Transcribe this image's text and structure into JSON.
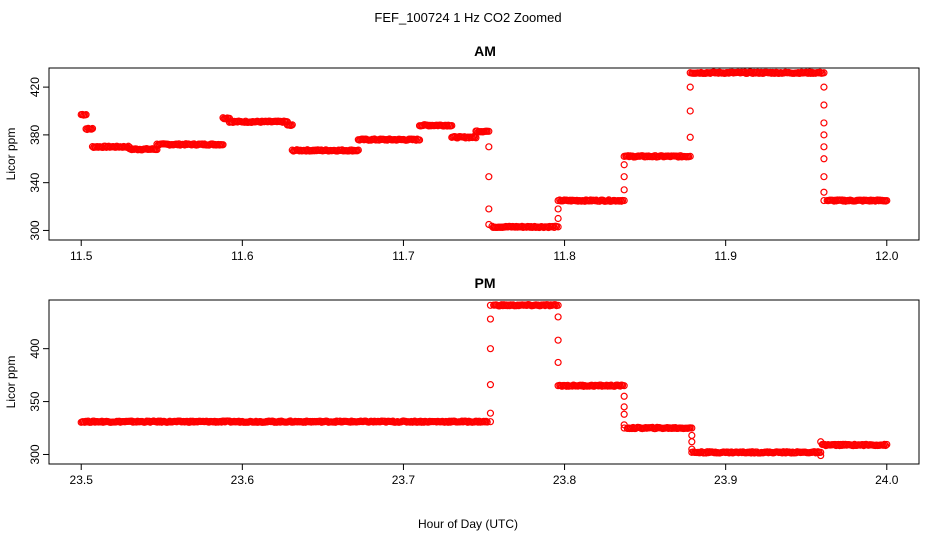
{
  "figure": {
    "title": "FEF_100724  1 Hz CO2 Zoomed",
    "xlabel": "Hour of Day (UTC)"
  },
  "colors": {
    "points": "#ff0000",
    "axes": "#000000",
    "background": "#ffffff"
  },
  "chart_data": [
    {
      "type": "scatter",
      "title": "AM",
      "xlabel": "Hour of Day (UTC)",
      "ylabel": "Licor ppm",
      "xlim": [
        11.48,
        12.02
      ],
      "ylim": [
        292,
        436
      ],
      "xticks": [
        "11.5",
        "11.6",
        "11.7",
        "11.8",
        "11.9",
        "12.0"
      ],
      "yticks": [
        "300",
        "340",
        "380",
        "420"
      ],
      "grid": false,
      "legend": "none",
      "marker": "open-circle",
      "series": [
        {
          "segments": [
            {
              "x0": 11.5,
              "x1": 11.503,
              "y": 397
            },
            {
              "x0": 11.503,
              "x1": 11.507,
              "y": 385
            },
            {
              "x0": 11.507,
              "x1": 11.53,
              "y": 370
            },
            {
              "x0": 11.53,
              "x1": 11.547,
              "y": 368
            },
            {
              "x0": 11.547,
              "x1": 11.588,
              "y": 372
            },
            {
              "x0": 11.588,
              "x1": 11.592,
              "y": 394
            },
            {
              "x0": 11.592,
              "x1": 11.628,
              "y": 391
            },
            {
              "x0": 11.628,
              "x1": 11.631,
              "y": 388
            },
            {
              "x0": 11.631,
              "x1": 11.672,
              "y": 367
            },
            {
              "x0": 11.672,
              "x1": 11.71,
              "y": 376
            },
            {
              "x0": 11.71,
              "x1": 11.73,
              "y": 388
            },
            {
              "x0": 11.73,
              "x1": 11.745,
              "y": 378
            },
            {
              "x0": 11.745,
              "x1": 11.752,
              "y": 383
            },
            {
              "x0": 11.755,
              "x1": 11.795,
              "y": 303
            },
            {
              "x0": 11.797,
              "x1": 11.836,
              "y": 325
            },
            {
              "x0": 11.838,
              "x1": 11.877,
              "y": 362
            },
            {
              "x0": 11.879,
              "x1": 11.96,
              "y": 432
            },
            {
              "x0": 11.963,
              "x1": 12.0,
              "y": 325
            }
          ],
          "transitions": [
            {
              "x": 11.753,
              "y": [
                383,
                370,
                345,
                318,
                305
              ]
            },
            {
              "x": 11.796,
              "y": [
                303,
                310,
                318,
                325
              ]
            },
            {
              "x": 11.837,
              "y": [
                325,
                334,
                345,
                355,
                362
              ]
            },
            {
              "x": 11.878,
              "y": [
                362,
                378,
                400,
                420,
                432
              ]
            },
            {
              "x": 11.961,
              "y": [
                432,
                420,
                405,
                390,
                380,
                370,
                360,
                345,
                332,
                325
              ]
            }
          ]
        }
      ]
    },
    {
      "type": "scatter",
      "title": "PM",
      "xlabel": "Hour of Day (UTC)",
      "ylabel": "Licor ppm",
      "xlim": [
        23.48,
        24.02
      ],
      "ylim": [
        291,
        446
      ],
      "xticks": [
        "23.5",
        "23.6",
        "23.7",
        "23.8",
        "23.9",
        "24.0"
      ],
      "yticks": [
        "300",
        "350",
        "400"
      ],
      "grid": false,
      "legend": "none",
      "marker": "open-circle",
      "series": [
        {
          "segments": [
            {
              "x0": 23.5,
              "x1": 23.752,
              "y": 331
            },
            {
              "x0": 23.756,
              "x1": 23.795,
              "y": 441
            },
            {
              "x0": 23.797,
              "x1": 23.836,
              "y": 365
            },
            {
              "x0": 23.839,
              "x1": 23.878,
              "y": 325
            },
            {
              "x0": 23.88,
              "x1": 23.958,
              "y": 302
            },
            {
              "x0": 23.96,
              "x1": 24.0,
              "y": 309
            }
          ],
          "transitions": [
            {
              "x": 23.754,
              "y": [
                331,
                339,
                366,
                400,
                428,
                441
              ]
            },
            {
              "x": 23.796,
              "y": [
                441,
                430,
                408,
                387,
                365
              ]
            },
            {
              "x": 23.837,
              "y": [
                365,
                355,
                345,
                338,
                328,
                325
              ]
            },
            {
              "x": 23.879,
              "y": [
                325,
                318,
                312,
                305,
                302
              ]
            },
            {
              "x": 23.959,
              "y": [
                302,
                299,
                312
              ]
            }
          ]
        }
      ]
    }
  ]
}
